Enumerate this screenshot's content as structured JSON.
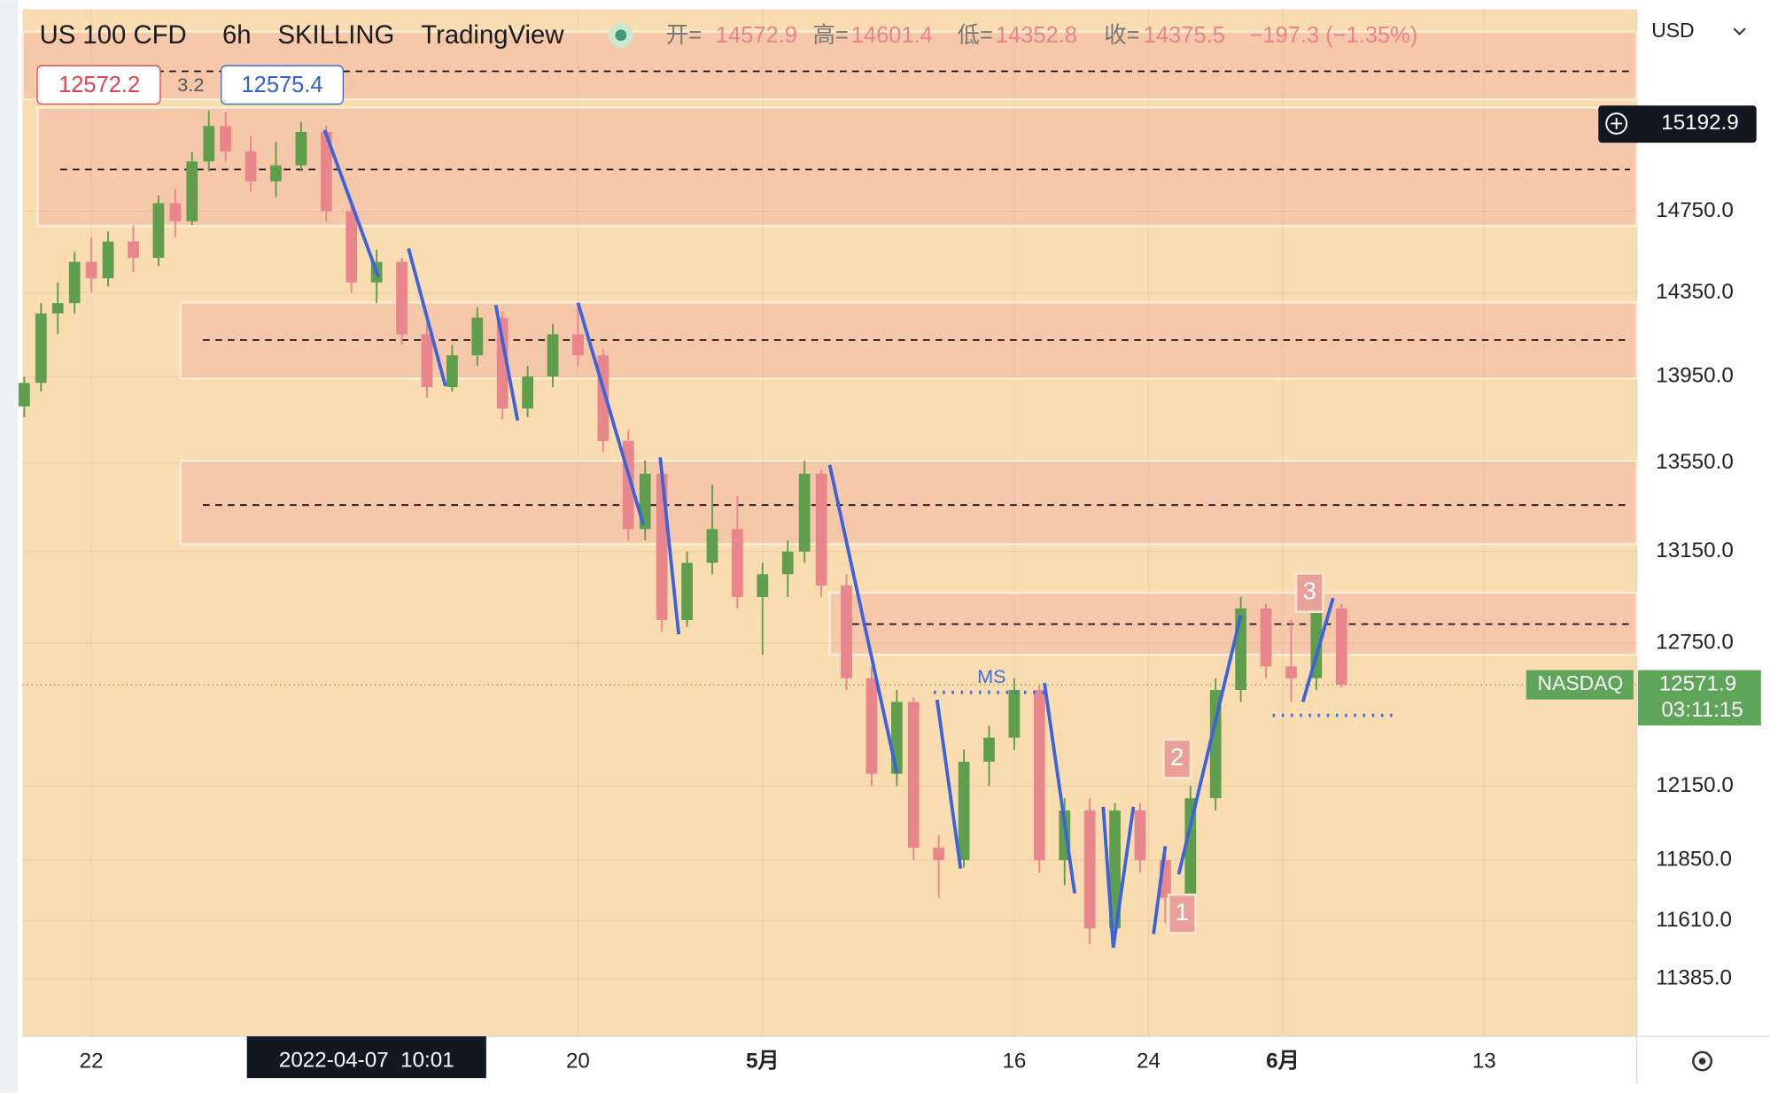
{
  "header": {
    "symbol": "US 100 CFD",
    "interval": "6h",
    "broker": "SKILLING",
    "platform": "TradingView",
    "open_label": "开=",
    "open": 14572.9,
    "high_label": "高=",
    "high": 14601.4,
    "low_label": "低=",
    "low": 14352.8,
    "close_label": "收=",
    "close": 14375.5,
    "change": "−197.3 (−1.35%)",
    "bid": 12572.2,
    "spread": 3.2,
    "ask": 12575.4
  },
  "chart_data": {
    "type": "candlestick",
    "log_scale": true,
    "grid": true,
    "currency": "USD",
    "up_color": "#5e9e4c",
    "down_color": "#e8868c",
    "xlim": [
      17.9,
      114.1
    ],
    "xticks": [
      {
        "value": 22,
        "label": "22"
      },
      {
        "value": 51,
        "label": "20"
      },
      {
        "value": 62,
        "label": "5月"
      },
      {
        "value": 77,
        "label": "16"
      },
      {
        "value": 85,
        "label": "24"
      },
      {
        "value": 93,
        "label": "6月"
      },
      {
        "value": 105,
        "label": "13"
      }
    ],
    "ylim": [
      11166,
      15790
    ],
    "yticks": [
      {
        "value": 14750,
        "label": "14750.0"
      },
      {
        "value": 14350,
        "label": "14350.0"
      },
      {
        "value": 13950,
        "label": "13950.0"
      },
      {
        "value": 13550,
        "label": "13550.0"
      },
      {
        "value": 13150,
        "label": "13150.0"
      },
      {
        "value": 12750,
        "label": "12750.0"
      },
      {
        "value": 12150,
        "label": "12150.0"
      },
      {
        "value": 11850,
        "label": "11850.0"
      },
      {
        "value": 11610,
        "label": "11610.0"
      },
      {
        "value": 11385,
        "label": "11385.0"
      }
    ],
    "x": [
      18,
      19,
      20,
      21,
      22,
      23,
      24.5,
      26,
      27,
      28,
      29,
      30,
      31.5,
      33,
      34.5,
      36,
      37.5,
      39,
      40.5,
      42,
      43.5,
      45,
      46.5,
      48,
      49.5,
      51,
      52.5,
      54,
      55,
      56,
      57.5,
      59,
      60.5,
      62,
      63.5,
      64.5,
      65.5,
      67,
      68.5,
      70,
      71,
      72.5,
      74,
      75.5,
      77,
      78.5,
      80,
      81.5,
      83,
      84.5,
      86,
      87.5,
      89,
      90.5,
      92,
      93.5,
      95,
      96.5
    ],
    "open": [
      13810,
      13920,
      14250,
      14300,
      14500,
      14420,
      14600,
      14520,
      14790,
      14700,
      15000,
      15180,
      15050,
      14900,
      14980,
      15150,
      14750,
      14400,
      14500,
      14150,
      13900,
      14050,
      14230,
      13800,
      13950,
      14150,
      14050,
      13650,
      13250,
      13500,
      12850,
      13100,
      13250,
      12950,
      13050,
      13150,
      13500,
      13000,
      12600,
      12200,
      12500,
      11900,
      11850,
      12250,
      12350,
      12550,
      11850,
      12050,
      11580,
      12050,
      11850,
      11700,
      12100,
      12550,
      12900,
      12650,
      12600,
      12900
    ],
    "high": [
      13950,
      14300,
      14400,
      14550,
      14620,
      14650,
      14680,
      14830,
      14860,
      15050,
      15260,
      15250,
      15130,
      15100,
      15200,
      15180,
      14800,
      14560,
      14520,
      14200,
      14100,
      14280,
      14260,
      14000,
      14200,
      14300,
      14080,
      13700,
      13560,
      13520,
      13150,
      13450,
      13400,
      13100,
      13200,
      13560,
      13520,
      13050,
      12650,
      12550,
      12520,
      11950,
      12300,
      12400,
      12600,
      12570,
      12100,
      12100,
      12080,
      12080,
      11900,
      12150,
      12600,
      12950,
      12920,
      12850,
      12950,
      12920
    ],
    "low": [
      13760,
      13880,
      14150,
      14250,
      14350,
      14380,
      14450,
      14480,
      14620,
      14680,
      14950,
      15000,
      14850,
      14820,
      14950,
      14700,
      14350,
      14300,
      14100,
      13850,
      13880,
      14000,
      13750,
      13760,
      13900,
      14000,
      13600,
      13200,
      13200,
      12800,
      12820,
      13050,
      12900,
      12700,
      12950,
      13100,
      12950,
      12550,
      12150,
      12150,
      11850,
      11700,
      11820,
      12150,
      12300,
      11800,
      11750,
      11520,
      11550,
      11800,
      11600,
      11680,
      12050,
      12500,
      12600,
      12500,
      12550,
      12560
    ],
    "close": [
      13920,
      14250,
      14300,
      14500,
      14420,
      14600,
      14520,
      14790,
      14700,
      15000,
      15180,
      15050,
      14900,
      14980,
      15150,
      14750,
      14400,
      14500,
      14150,
      13900,
      14050,
      14230,
      13800,
      13950,
      14150,
      14050,
      13650,
      13250,
      13500,
      12850,
      13100,
      13250,
      12950,
      13050,
      13150,
      13500,
      13000,
      12600,
      12200,
      12500,
      11900,
      11850,
      12250,
      12350,
      12550,
      11850,
      12050,
      11580,
      12050,
      11850,
      11700,
      12100,
      12550,
      12900,
      12650,
      12600,
      12900,
      12571.9
    ],
    "zones": [
      {
        "from": 17.9,
        "low": 15317,
        "high": 15671,
        "line": 15463
      },
      {
        "from": 18.8,
        "low": 14677,
        "high": 15275,
        "line": 14959
      },
      {
        "from": 27.3,
        "low": 13941,
        "high": 14303,
        "line": 14123
      },
      {
        "from": 27.3,
        "low": 13183,
        "high": 13559,
        "line": 13358
      },
      {
        "from": 66.0,
        "low": 12700,
        "high": 12969,
        "line": 12832
      }
    ],
    "trendlines": [
      {
        "x": [
          35.9,
          39.1
        ],
        "y": [
          15160,
          14428
        ]
      },
      {
        "x": [
          40.9,
          43.1
        ],
        "y": [
          14566,
          13905
        ]
      },
      {
        "x": [
          46.1,
          47.4
        ],
        "y": [
          14290,
          13745
        ]
      },
      {
        "x": [
          51.0,
          54.9
        ],
        "y": [
          14302,
          13268
        ]
      },
      {
        "x": [
          55.9,
          57.0
        ],
        "y": [
          13575,
          12788
        ]
      },
      {
        "x": [
          66.0,
          70.0
        ],
        "y": [
          13540,
          12204
        ]
      },
      {
        "x": [
          72.4,
          73.8
        ],
        "y": [
          12509,
          11816
        ]
      },
      {
        "x": [
          78.8,
          80.6
        ],
        "y": [
          12580,
          11718
        ]
      },
      {
        "x": [
          82.3,
          82.9,
          84.1
        ],
        "y": [
          12065,
          11505,
          12065
        ]
      },
      {
        "x": [
          85.3,
          86.0
        ],
        "y": [
          11558,
          11906
        ]
      },
      {
        "x": [
          86.8,
          90.5
        ],
        "y": [
          11793,
          12870
        ]
      },
      {
        "x": [
          94.2,
          96.0
        ],
        "y": [
          12500,
          12945
        ]
      }
    ],
    "levels": [
      {
        "text": "MS",
        "from": 72.2,
        "to": 79.1,
        "value": 12540
      },
      {
        "from": 92.4,
        "to": 99.8,
        "value": 12443
      }
    ],
    "labels": [
      {
        "text": "1",
        "x": 87.0,
        "y": 11637
      },
      {
        "text": "2",
        "x": 86.7,
        "y": 12262
      },
      {
        "text": "3",
        "x": 94.6,
        "y": 12969
      }
    ],
    "last_price": {
      "value": 12571.9,
      "source": "NASDAQ",
      "countdown": "03:11:15"
    },
    "crosshair": {
      "x": {
        "value": 38.4,
        "label": "2022-04-07  10:01"
      },
      "y": 15192.9
    }
  }
}
